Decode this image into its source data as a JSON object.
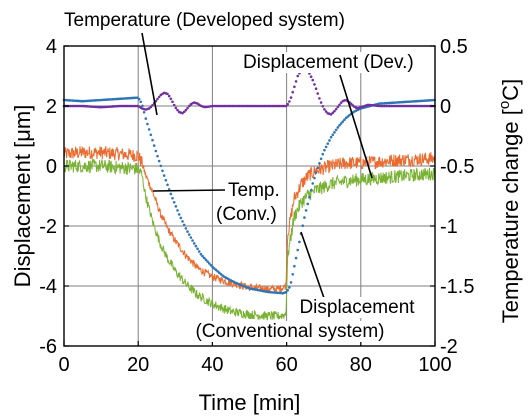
{
  "chart_data": {
    "type": "line",
    "title": "",
    "grid": true,
    "x_axis": {
      "label": "Time [min]",
      "range": [
        0,
        100
      ],
      "ticks": [
        0,
        20,
        40,
        60,
        80,
        100
      ],
      "tick_labels": [
        "0",
        "20",
        "40",
        "60",
        "80",
        "100"
      ]
    },
    "y_axis_left": {
      "label": "Displacement [μm]",
      "range": [
        -6,
        4
      ],
      "ticks": [
        -6,
        -4,
        -2,
        0,
        2,
        4
      ],
      "tick_labels": [
        "-6",
        "-4",
        "-2",
        "0",
        "2",
        "4"
      ]
    },
    "y_axis_right": {
      "label": "Temperature change [",
      "label_superscript": "o",
      "label_suffix": "C]",
      "range": [
        -2,
        0.5
      ],
      "ticks": [
        -2,
        -1.5,
        -1,
        -0.5,
        0,
        0.5
      ],
      "tick_labels": [
        "-2",
        "-1.5",
        "-1",
        "-0.5",
        "0",
        "0.5"
      ]
    },
    "series": [
      {
        "axis": "left",
        "color": "#ec6a2d",
        "style": "noisy-band",
        "points": [
          [
            0,
            0.4
          ],
          [
            5,
            0.45
          ],
          [
            10,
            0.45
          ],
          [
            15,
            0.4
          ],
          [
            20,
            0.35
          ],
          [
            21,
            0.1
          ],
          [
            22,
            -0.3
          ],
          [
            24,
            -0.9
          ],
          [
            26,
            -1.6
          ],
          [
            28,
            -2.1
          ],
          [
            30,
            -2.5
          ],
          [
            33,
            -3.0
          ],
          [
            36,
            -3.4
          ],
          [
            40,
            -3.7
          ],
          [
            45,
            -3.9
          ],
          [
            50,
            -4.05
          ],
          [
            55,
            -4.1
          ],
          [
            58,
            -4.1
          ],
          [
            59.8,
            -4.0
          ],
          [
            60.3,
            -2.3
          ],
          [
            62,
            -1.1
          ],
          [
            64,
            -0.6
          ],
          [
            66,
            -0.3
          ],
          [
            68,
            -0.15
          ],
          [
            72,
            0.0
          ],
          [
            76,
            0.1
          ],
          [
            80,
            0.1
          ],
          [
            90,
            0.2
          ],
          [
            100,
            0.25
          ]
        ],
        "noise": [
          0.45,
          0.25
        ]
      },
      {
        "axis": "left",
        "color": "#79b233",
        "style": "noisy-band",
        "points": [
          [
            0,
            0.0
          ],
          [
            5,
            0.0
          ],
          [
            10,
            0.0
          ],
          [
            15,
            -0.05
          ],
          [
            20,
            -0.1
          ],
          [
            21,
            -0.3
          ],
          [
            22,
            -1.0
          ],
          [
            24,
            -1.9
          ],
          [
            26,
            -2.6
          ],
          [
            28,
            -3.1
          ],
          [
            30,
            -3.5
          ],
          [
            33,
            -3.95
          ],
          [
            36,
            -4.3
          ],
          [
            40,
            -4.6
          ],
          [
            45,
            -4.85
          ],
          [
            50,
            -4.95
          ],
          [
            55,
            -5.0
          ],
          [
            58,
            -5.0
          ],
          [
            59.8,
            -4.95
          ],
          [
            60.3,
            -3.0
          ],
          [
            62,
            -1.7
          ],
          [
            64,
            -1.2
          ],
          [
            66,
            -0.95
          ],
          [
            68,
            -0.8
          ],
          [
            72,
            -0.6
          ],
          [
            76,
            -0.5
          ],
          [
            80,
            -0.45
          ],
          [
            90,
            -0.35
          ],
          [
            100,
            -0.25
          ]
        ],
        "noise": [
          0.45,
          0.3
        ]
      },
      {
        "axis": "right",
        "color": "#2e75b6",
        "style": "dotted",
        "points": [
          [
            0,
            0.05
          ],
          [
            5,
            0.04
          ],
          [
            10,
            0.05
          ],
          [
            15,
            0.06
          ],
          [
            20,
            0.07
          ],
          [
            21,
            0.02
          ],
          [
            22,
            -0.1
          ],
          [
            23,
            -0.2
          ],
          [
            25,
            -0.4
          ],
          [
            27,
            -0.58
          ],
          [
            29,
            -0.75
          ],
          [
            31,
            -0.9
          ],
          [
            33,
            -1.03
          ],
          [
            35,
            -1.14
          ],
          [
            37,
            -1.24
          ],
          [
            40,
            -1.34
          ],
          [
            43,
            -1.42
          ],
          [
            46,
            -1.47
          ],
          [
            50,
            -1.52
          ],
          [
            55,
            -1.55
          ],
          [
            59,
            -1.56
          ],
          [
            60,
            -1.55
          ],
          [
            61,
            -1.5
          ],
          [
            62,
            -1.35
          ],
          [
            63,
            -1.2
          ],
          [
            64,
            -1.05
          ],
          [
            65,
            -0.9
          ],
          [
            66,
            -0.78
          ],
          [
            67,
            -0.65
          ],
          [
            68,
            -0.55
          ],
          [
            70,
            -0.38
          ],
          [
            72,
            -0.26
          ],
          [
            74,
            -0.17
          ],
          [
            76,
            -0.1
          ],
          [
            78,
            -0.05
          ],
          [
            80,
            -0.02
          ],
          [
            85,
            0.02
          ],
          [
            90,
            0.03
          ],
          [
            95,
            0.04
          ],
          [
            100,
            0.05
          ]
        ]
      },
      {
        "axis": "right",
        "color": "#7030a0",
        "style": "dotted",
        "points": [
          [
            0,
            0.0
          ],
          [
            5,
            0.0
          ],
          [
            10,
            -0.01
          ],
          [
            15,
            0.0
          ],
          [
            20,
            0.0
          ],
          [
            21,
            -0.02
          ],
          [
            22,
            -0.03
          ],
          [
            23,
            -0.02
          ],
          [
            24,
            0.01
          ],
          [
            25,
            0.05
          ],
          [
            26,
            0.09
          ],
          [
            27,
            0.11
          ],
          [
            28,
            0.1
          ],
          [
            29,
            0.05
          ],
          [
            30,
            -0.01
          ],
          [
            31,
            -0.05
          ],
          [
            32,
            -0.06
          ],
          [
            33,
            -0.03
          ],
          [
            34,
            0.01
          ],
          [
            35,
            0.03
          ],
          [
            36,
            0.02
          ],
          [
            37,
            0.0
          ],
          [
            38,
            -0.01
          ],
          [
            40,
            0.0
          ],
          [
            45,
            0.0
          ],
          [
            50,
            0.0
          ],
          [
            55,
            0.0
          ],
          [
            60,
            0.0
          ],
          [
            61,
            0.05
          ],
          [
            62,
            0.15
          ],
          [
            63,
            0.25
          ],
          [
            64,
            0.3
          ],
          [
            65,
            0.31
          ],
          [
            66,
            0.28
          ],
          [
            67,
            0.22
          ],
          [
            68,
            0.14
          ],
          [
            69,
            0.05
          ],
          [
            70,
            -0.02
          ],
          [
            71,
            -0.06
          ],
          [
            72,
            -0.07
          ],
          [
            73,
            -0.04
          ],
          [
            74,
            0.0
          ],
          [
            75,
            0.04
          ],
          [
            76,
            0.05
          ],
          [
            77,
            0.03
          ],
          [
            78,
            0.0
          ],
          [
            79,
            -0.02
          ],
          [
            80,
            -0.01
          ],
          [
            82,
            0.01
          ],
          [
            85,
            0.0
          ],
          [
            90,
            0.0
          ],
          [
            100,
            0.0
          ]
        ]
      }
    ],
    "annotations": [
      {
        "lines": [
          "Temperature (Developed system)"
        ],
        "points_to": [
          21.5,
          0.03
        ],
        "axis": "right"
      },
      {
        "lines": [
          "Displacement (Dev.)"
        ],
        "points_to": [
          73,
          0.0
        ],
        "axis": "left"
      },
      {
        "lines": [
          "Temp.",
          "(Conv.)"
        ],
        "points_to": [
          26,
          -0.58
        ],
        "axis": "right"
      },
      {
        "lines": [
          "Displacement",
          "(Conventional system)"
        ],
        "points_to": [
          61,
          -1.5
        ],
        "axis": "left"
      }
    ]
  }
}
